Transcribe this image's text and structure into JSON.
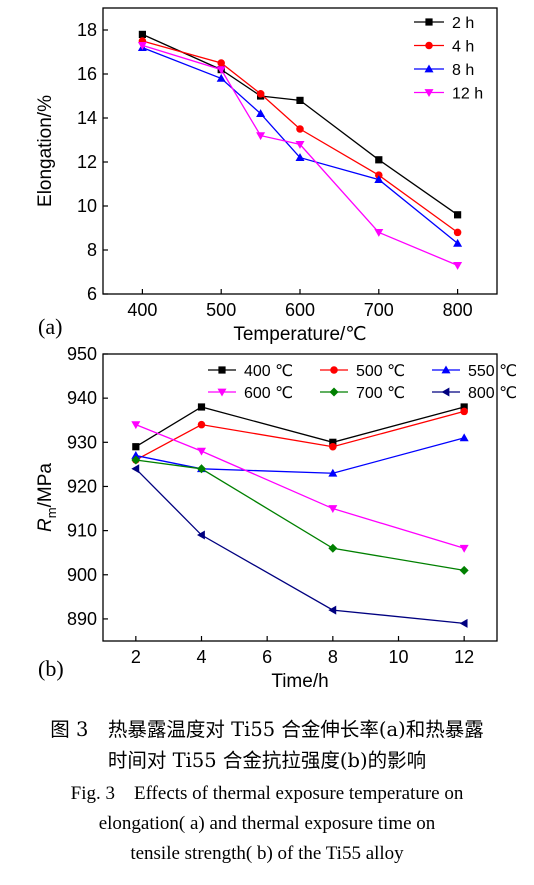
{
  "chart_data": [
    {
      "type": "line",
      "panel_label": "(a)",
      "xlabel": "Temperature/℃",
      "ylabel": "Elongation/%",
      "xlim": [
        350,
        850
      ],
      "ylim": [
        6,
        19
      ],
      "xticks": [
        400,
        500,
        600,
        700,
        800
      ],
      "yticks": [
        6,
        8,
        10,
        12,
        14,
        16,
        18
      ],
      "legend_position": "top-right",
      "series": [
        {
          "name": "2 h",
          "color": "#000000",
          "marker": "square",
          "x": [
            400,
            500,
            550,
            600,
            700,
            800
          ],
          "y": [
            17.8,
            16.2,
            15.0,
            14.8,
            12.1,
            9.6
          ]
        },
        {
          "name": "4 h",
          "color": "#ff0000",
          "marker": "circle",
          "x": [
            400,
            500,
            550,
            600,
            700,
            800
          ],
          "y": [
            17.5,
            16.5,
            15.1,
            13.5,
            11.4,
            8.8
          ]
        },
        {
          "name": "8 h",
          "color": "#0000ff",
          "marker": "triangle-up",
          "x": [
            400,
            500,
            550,
            600,
            700,
            800
          ],
          "y": [
            17.2,
            15.8,
            14.2,
            12.2,
            11.2,
            8.3
          ]
        },
        {
          "name": "12 h",
          "color": "#ff00ff",
          "marker": "triangle-down",
          "x": [
            400,
            500,
            550,
            600,
            700,
            800
          ],
          "y": [
            17.3,
            16.2,
            13.2,
            12.8,
            8.8,
            7.3
          ]
        }
      ]
    },
    {
      "type": "line",
      "panel_label": "(b)",
      "xlabel": "Time/h",
      "ylabel_main": "R",
      "ylabel_sub": "m",
      "ylabel_rest": "/MPa",
      "xlim": [
        1,
        13
      ],
      "ylim": [
        885,
        950
      ],
      "xticks": [
        2,
        4,
        6,
        8,
        10,
        12
      ],
      "yticks": [
        890,
        900,
        910,
        920,
        930,
        940,
        950
      ],
      "legend_position": "top",
      "series": [
        {
          "name": "400 ℃",
          "color": "#000000",
          "marker": "square",
          "x": [
            2,
            4,
            8,
            12
          ],
          "y": [
            929,
            938,
            930,
            938
          ]
        },
        {
          "name": "500 ℃",
          "color": "#ff0000",
          "marker": "circle",
          "x": [
            2,
            4,
            8,
            12
          ],
          "y": [
            926,
            934,
            929,
            937
          ]
        },
        {
          "name": "550 ℃",
          "color": "#0000ff",
          "marker": "triangle-up",
          "x": [
            2,
            4,
            8,
            12
          ],
          "y": [
            927,
            924,
            923,
            931
          ]
        },
        {
          "name": "600 ℃",
          "color": "#ff00ff",
          "marker": "triangle-down",
          "x": [
            2,
            4,
            8,
            12
          ],
          "y": [
            934,
            928,
            915,
            906
          ]
        },
        {
          "name": "700 ℃",
          "color": "#008000",
          "marker": "diamond",
          "x": [
            2,
            4,
            8,
            12
          ],
          "y": [
            926,
            924,
            906,
            901
          ]
        },
        {
          "name": "800 ℃",
          "color": "#000080",
          "marker": "triangle-left",
          "x": [
            2,
            4,
            8,
            12
          ],
          "y": [
            924,
            909,
            892,
            889
          ]
        }
      ]
    }
  ],
  "caption": {
    "zh_line1": "图 3　热暴露温度对 Ti55 合金伸长率(a)和热暴露",
    "zh_line2": "时间对 Ti55 合金抗拉强度(b)的影响",
    "en_line1": "Fig. 3　Effects of thermal exposure temperature on",
    "en_line2": "elongation( a)  and thermal exposure time on",
    "en_line3": "tensile strength( b)  of the Ti55 alloy"
  }
}
